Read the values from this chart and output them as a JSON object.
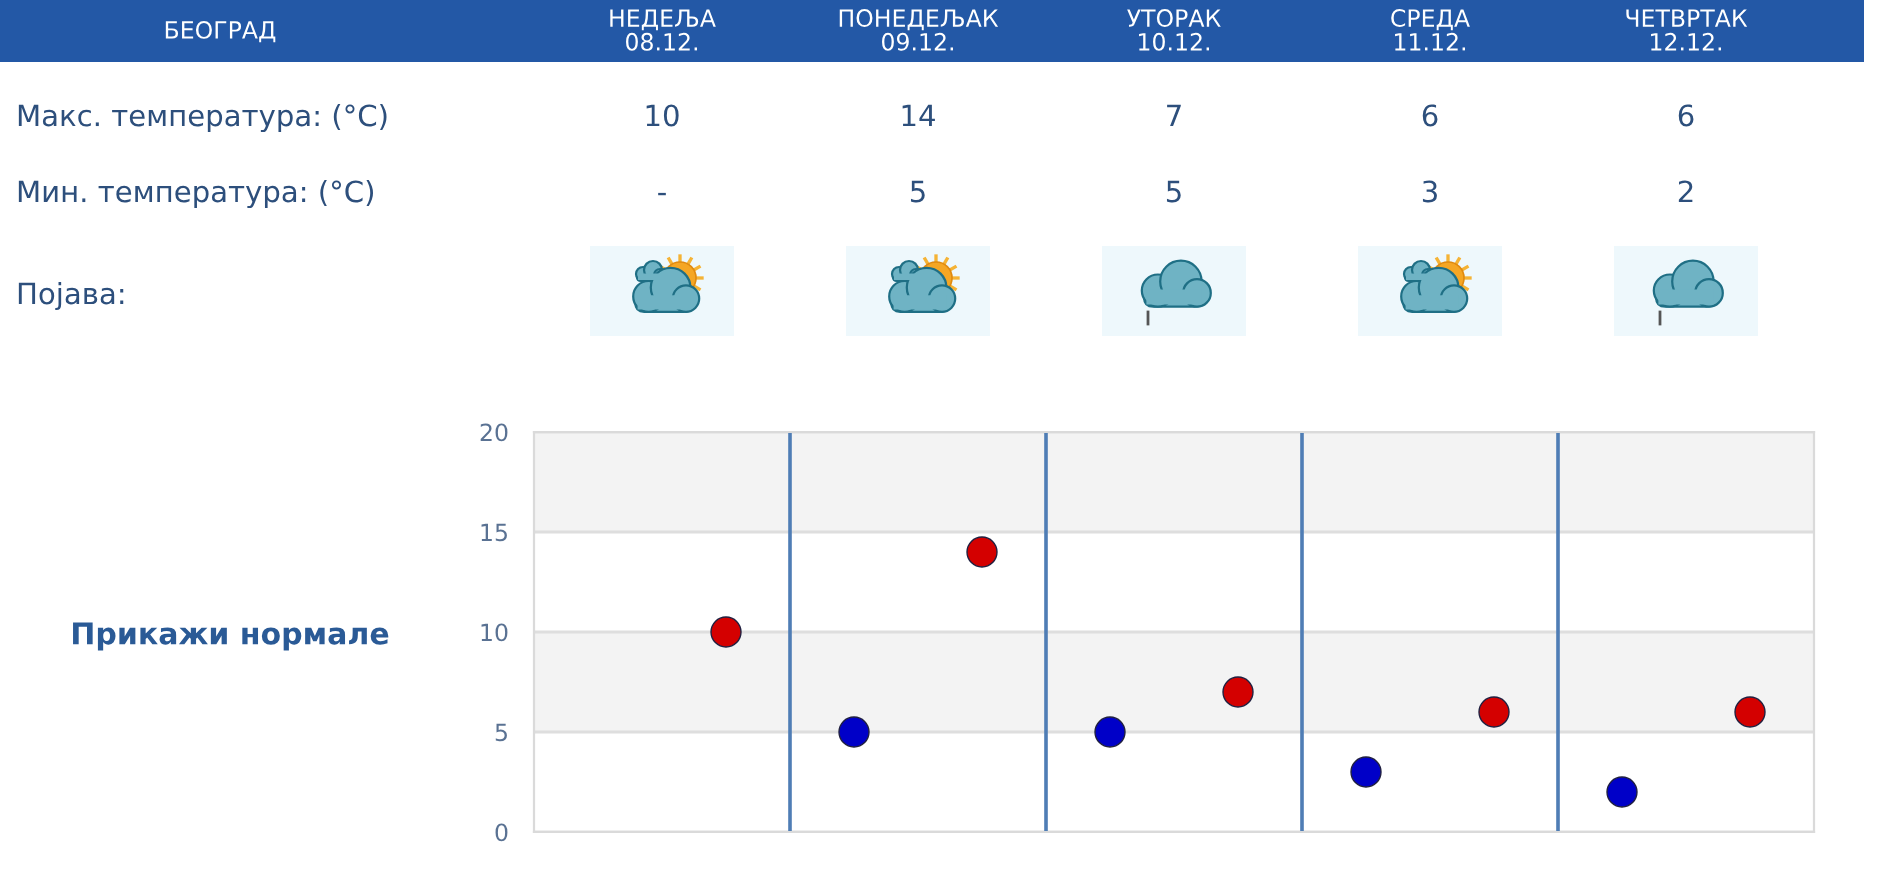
{
  "chart_data": {
    "type": "scatter",
    "title": "БЕОГРАД",
    "categories": [
      null,
      null,
      null,
      null,
      null
    ],
    "series": [
      {
        "color": "#d40000",
        "values": [
          10,
          14,
          7,
          6,
          6
        ],
        "value_labels": [
          "10",
          "14",
          "7",
          "6",
          "6"
        ]
      },
      {
        "color": "#0000c8",
        "values": [
          null,
          5,
          5,
          3,
          2
        ],
        "value_labels": [
          "-",
          "5",
          "5",
          "3",
          "2"
        ]
      }
    ],
    "ylim": [
      0,
      20
    ],
    "yticks": [
      0,
      5,
      10,
      15,
      20
    ],
    "grid": true,
    "marker": "circle",
    "bands": [
      {
        "axis": "y",
        "from": 15,
        "to": 20,
        "color": "#f3f3f3"
      },
      {
        "axis": "y",
        "from": 5,
        "to": 10,
        "color": "#f3f3f3"
      }
    ],
    "annotations": [
      "НЕДЕЉА\n08.12.",
      "ПОНЕДЕЉАК\n09.12.",
      "УТОРАК\n10.12.",
      "СРЕДА\n11.12.",
      "ЧЕТВРТАК\n12.12.",
      "Макс. температура: (°C)",
      "Мин. температура: (°C)",
      "Појава:",
      "Прикажи нормале"
    ]
  }
}
